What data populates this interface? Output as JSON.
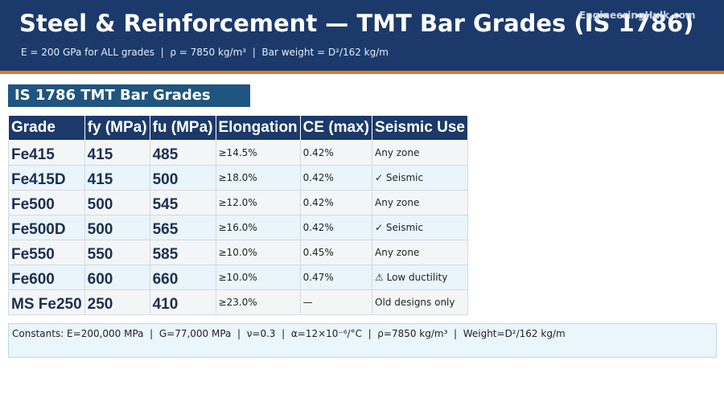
{
  "header": {
    "title": "Steel & Reinforcement — TMT Bar Grades (IS 1786)",
    "subtitle": "E = 200 GPa for ALL grades  |  ρ = 7850 kg/m³  |  Bar weight = D²/162 kg/m",
    "watermark": "EngineeringHulk.com"
  },
  "section": {
    "title": "IS 1786 TMT Bar Grades"
  },
  "table": {
    "columns": [
      "Grade",
      "fy (MPa)",
      "fu (MPa)",
      "Elongation",
      "CE (max)",
      "Seismic Use"
    ],
    "rows": [
      [
        "Fe415",
        "415",
        "485",
        "≥14.5%",
        "0.42%",
        "Any zone"
      ],
      [
        "Fe415D",
        "415",
        "500",
        "≥18.0%",
        "0.42%",
        "✓ Seismic"
      ],
      [
        "Fe500",
        "500",
        "545",
        "≥12.0%",
        "0.42%",
        "Any zone"
      ],
      [
        "Fe500D",
        "500",
        "565",
        "≥16.0%",
        "0.42%",
        "✓ Seismic"
      ],
      [
        "Fe550",
        "550",
        "585",
        "≥10.0%",
        "0.45%",
        "Any zone"
      ],
      [
        "Fe600",
        "600",
        "660",
        "≥10.0%",
        "0.47%",
        "⚠ Low ductility"
      ],
      [
        "MS Fe250",
        "250",
        "410",
        "≥23.0%",
        "—",
        "Old designs only"
      ]
    ]
  },
  "footer": {
    "text": "Constants: E=200,000 MPa  |  G=77,000 MPa  |  ν=0.3  |  α=12×10⁻⁶/°C  |  ρ=7850 kg/m³  |  Weight=D²/162 kg/m"
  }
}
